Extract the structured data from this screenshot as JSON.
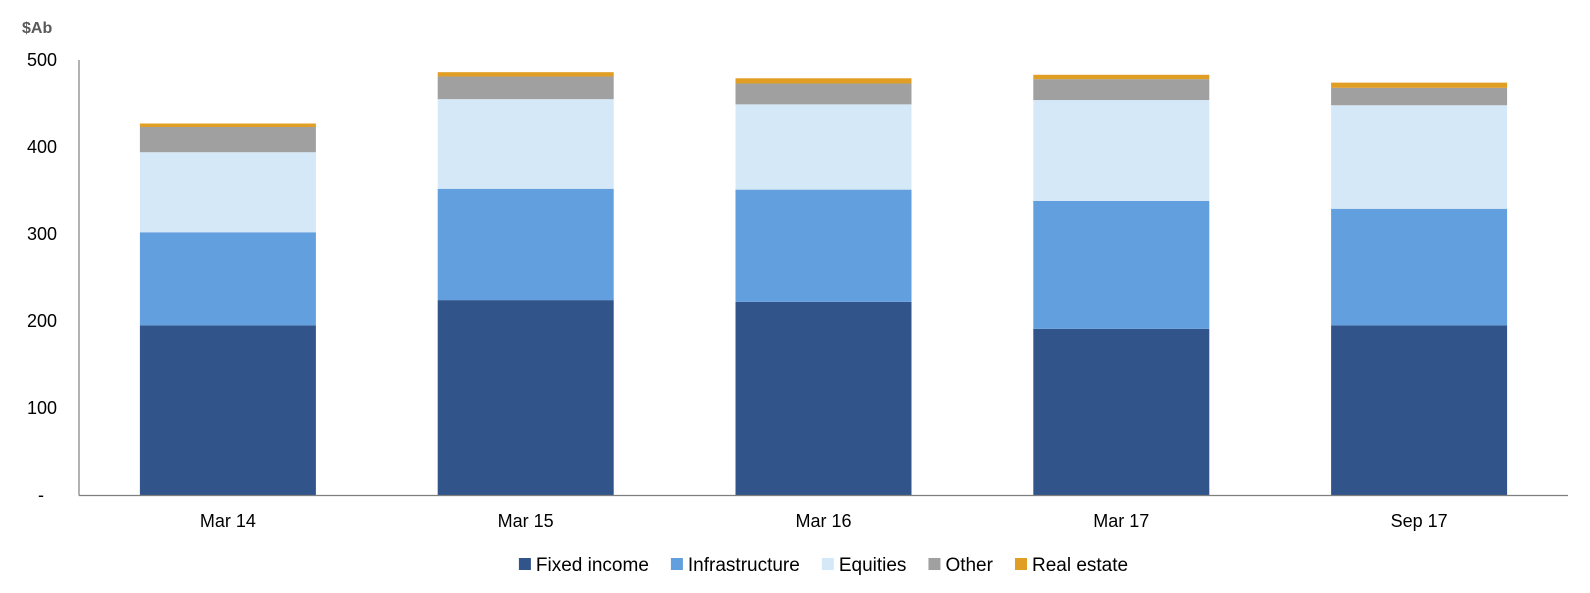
{
  "chart_data": {
    "type": "bar",
    "stacked": true,
    "unit_label": "$Ab",
    "title": "",
    "xlabel": "",
    "ylabel": "",
    "categories": [
      "Mar 14",
      "Mar 15",
      "Mar 16",
      "Mar 17",
      "Sep 17"
    ],
    "ylim": [
      0,
      500
    ],
    "yticks": [
      {
        "value": 0,
        "label": "-"
      },
      {
        "value": 100,
        "label": "100"
      },
      {
        "value": 200,
        "label": "200"
      },
      {
        "value": 300,
        "label": "300"
      },
      {
        "value": 400,
        "label": "400"
      },
      {
        "value": 500,
        "label": "500"
      }
    ],
    "grid": false,
    "legend_position": "bottom",
    "series": [
      {
        "name": "Fixed income",
        "color": "#31558A",
        "values": [
          195,
          224,
          222,
          191,
          195
        ]
      },
      {
        "name": "Infrastructure",
        "color": "#629FDF",
        "values": [
          107,
          128,
          129,
          147,
          134
        ]
      },
      {
        "name": "Equities",
        "color": "#D5E8F7",
        "values": [
          92,
          103,
          98,
          116,
          119
        ]
      },
      {
        "name": "Other",
        "color": "#A0A0A0",
        "values": [
          29,
          26,
          24,
          24,
          20
        ]
      },
      {
        "name": "Real estate",
        "color": "#E09E25",
        "values": [
          4,
          5,
          6,
          5,
          6
        ]
      }
    ]
  }
}
